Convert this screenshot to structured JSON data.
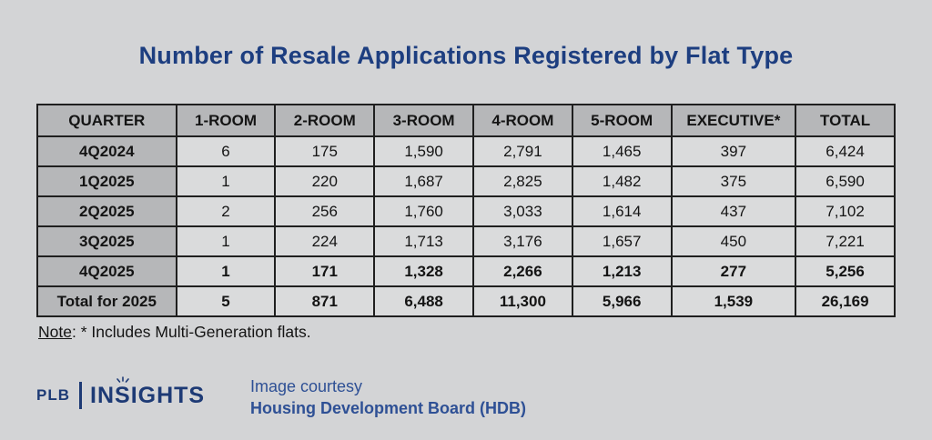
{
  "title": "Number of Resale Applications Registered by Flat Type",
  "table": {
    "headers": [
      "QUARTER",
      "1-ROOM",
      "2-ROOM",
      "3-ROOM",
      "4-ROOM",
      "5-ROOM",
      "EXECUTIVE*",
      "TOTAL"
    ],
    "rows": [
      {
        "quarter": "4Q2024",
        "values": [
          "6",
          "175",
          "1,590",
          "2,791",
          "1,465",
          "397",
          "6,424"
        ],
        "bold": false
      },
      {
        "quarter": "1Q2025",
        "values": [
          "1",
          "220",
          "1,687",
          "2,825",
          "1,482",
          "375",
          "6,590"
        ],
        "bold": false
      },
      {
        "quarter": "2Q2025",
        "values": [
          "2",
          "256",
          "1,760",
          "3,033",
          "1,614",
          "437",
          "7,102"
        ],
        "bold": false
      },
      {
        "quarter": "3Q2025",
        "values": [
          "1",
          "224",
          "1,713",
          "3,176",
          "1,657",
          "450",
          "7,221"
        ],
        "bold": false
      },
      {
        "quarter": "4Q2025",
        "values": [
          "1",
          "171",
          "1,328",
          "2,266",
          "1,213",
          "277",
          "5,256"
        ],
        "bold": true
      },
      {
        "quarter": "Total for 2025",
        "values": [
          "5",
          "871",
          "6,488",
          "11,300",
          "5,966",
          "1,539",
          "26,169"
        ],
        "bold": true
      }
    ]
  },
  "chart_data": {
    "type": "table",
    "title": "Number of Resale Applications Registered by Flat Type",
    "columns": [
      "QUARTER",
      "1-ROOM",
      "2-ROOM",
      "3-ROOM",
      "4-ROOM",
      "5-ROOM",
      "EXECUTIVE*",
      "TOTAL"
    ],
    "rows": [
      [
        "4Q2024",
        6,
        175,
        1590,
        2791,
        1465,
        397,
        6424
      ],
      [
        "1Q2025",
        1,
        220,
        1687,
        2825,
        1482,
        375,
        6590
      ],
      [
        "2Q2025",
        2,
        256,
        1760,
        3033,
        1614,
        437,
        7102
      ],
      [
        "3Q2025",
        1,
        224,
        1713,
        3176,
        1657,
        450,
        7221
      ],
      [
        "4Q2025",
        1,
        171,
        1328,
        2266,
        1213,
        277,
        5256
      ],
      [
        "Total for 2025",
        5,
        871,
        6488,
        11300,
        5966,
        1539,
        26169
      ]
    ],
    "note": "Note: * Includes Multi-Generation flats."
  },
  "note": {
    "label": "Note",
    "text": ": * Includes Multi-Generation flats."
  },
  "footer": {
    "logo_plb": "PLB",
    "logo_insights": "INSIGHTS",
    "courtesy_line1": "Image courtesy",
    "courtesy_line2": "Housing Development Board (HDB)"
  },
  "colors": {
    "background": "#d3d4d6",
    "header_cell_bg": "#b6b7b9",
    "data_cell_bg": "#dadbdc",
    "table_border": "#1f1f1f",
    "title_blue": "#1d3e80",
    "logo_blue": "#1d3a75",
    "courtesy_blue": "#2e5095",
    "text": "#141414"
  }
}
